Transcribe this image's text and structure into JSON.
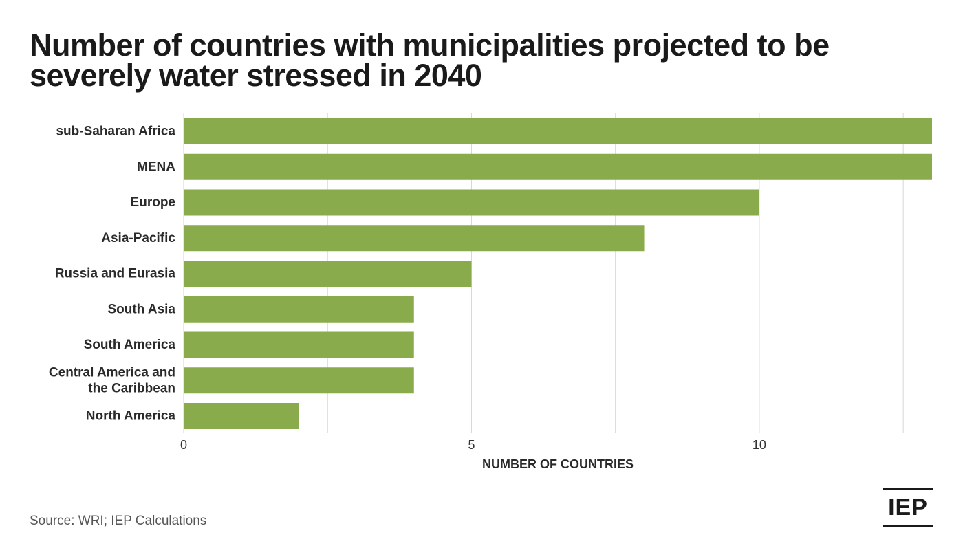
{
  "title": "Number of countries with municipalities projected to be severely water stressed in 2040",
  "source": "Source: WRI; IEP Calculations",
  "logo_text": "IEP",
  "colors": {
    "bar": "#8aab4b",
    "grid": "#d6d6d6",
    "text": "#1a1a1a"
  },
  "chart_data": {
    "type": "bar",
    "orientation": "horizontal",
    "categories": [
      [
        "sub-Saharan Africa"
      ],
      [
        "MENA"
      ],
      [
        "Europe"
      ],
      [
        "Asia-Pacific"
      ],
      [
        "Russia and Eurasia"
      ],
      [
        "South Asia"
      ],
      [
        "South America"
      ],
      [
        "Central America and",
        "the Caribbean"
      ],
      [
        "North America"
      ]
    ],
    "values": [
      13,
      13,
      10,
      8,
      5,
      4,
      4,
      4,
      2
    ],
    "xlim": [
      0,
      13
    ],
    "xticks": [
      0,
      5,
      10
    ],
    "gridlines": [
      0,
      2.5,
      5,
      7.5,
      10,
      12.5
    ],
    "xlabel": "NUMBER OF COUNTRIES",
    "ylabel": "",
    "grid": true,
    "legend": "none"
  }
}
